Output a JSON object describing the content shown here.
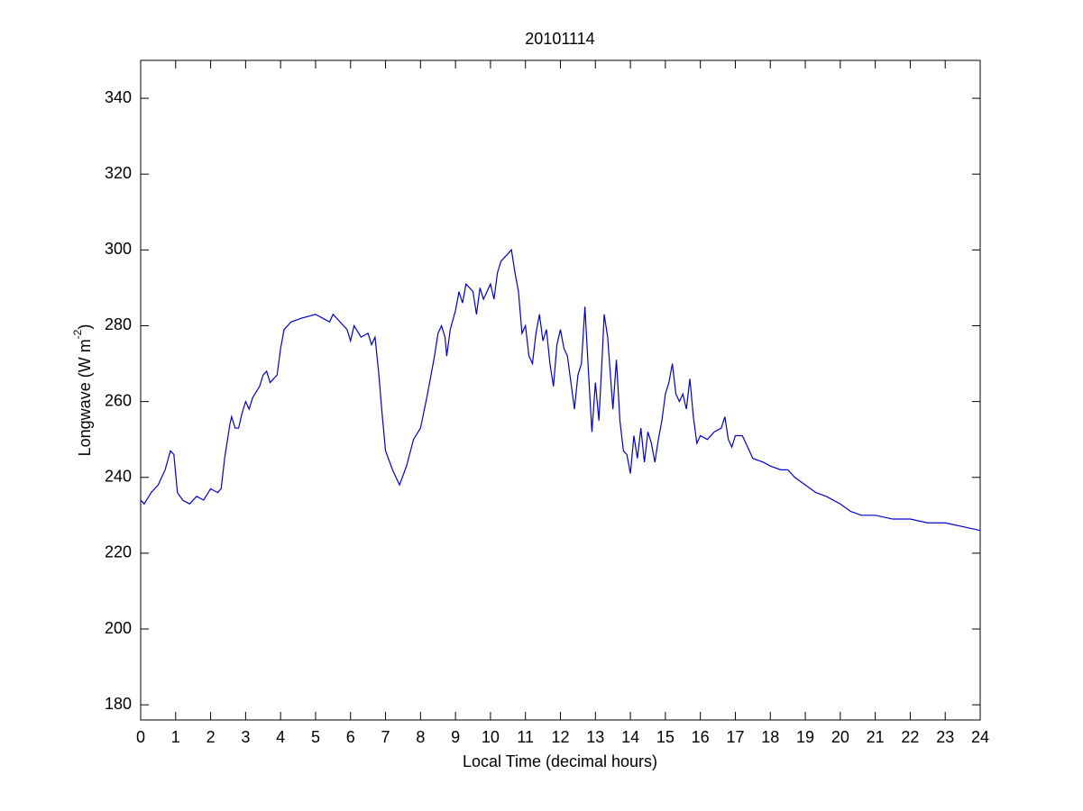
{
  "chart_data": {
    "type": "line",
    "title": "20101114",
    "xlabel": "Local Time (decimal hours)",
    "ylabel": {
      "text": "Longwave (W m",
      "superscript": "-2",
      "suffix": ")"
    },
    "color": "#0000cc",
    "xlim": [
      0,
      24
    ],
    "ylim": [
      176,
      350
    ],
    "xticks": [
      0,
      1,
      2,
      3,
      4,
      5,
      6,
      7,
      8,
      9,
      10,
      11,
      12,
      13,
      14,
      15,
      16,
      17,
      18,
      19,
      20,
      21,
      22,
      23,
      24
    ],
    "yticks": [
      180,
      200,
      220,
      240,
      260,
      280,
      300,
      320,
      340
    ],
    "grid": false,
    "x": [
      0,
      0.1,
      0.3,
      0.5,
      0.7,
      0.85,
      0.95,
      1.05,
      1.2,
      1.4,
      1.6,
      1.8,
      2.0,
      2.2,
      2.3,
      2.4,
      2.55,
      2.6,
      2.7,
      2.8,
      2.9,
      3.0,
      3.1,
      3.2,
      3.4,
      3.5,
      3.6,
      3.7,
      3.9,
      4.0,
      4.1,
      4.3,
      4.6,
      5.0,
      5.2,
      5.4,
      5.5,
      5.7,
      5.9,
      6.0,
      6.1,
      6.3,
      6.5,
      6.6,
      6.7,
      6.8,
      6.9,
      7.0,
      7.2,
      7.4,
      7.6,
      7.8,
      8.0,
      8.2,
      8.4,
      8.5,
      8.6,
      8.7,
      8.75,
      8.85,
      9.0,
      9.1,
      9.2,
      9.3,
      9.5,
      9.6,
      9.7,
      9.8,
      10.0,
      10.1,
      10.2,
      10.3,
      10.5,
      10.6,
      10.7,
      10.8,
      10.9,
      11.0,
      11.1,
      11.2,
      11.3,
      11.4,
      11.5,
      11.6,
      11.7,
      11.8,
      11.9,
      12.0,
      12.1,
      12.2,
      12.3,
      12.4,
      12.5,
      12.6,
      12.7,
      12.8,
      12.9,
      13.0,
      13.1,
      13.2,
      13.25,
      13.35,
      13.5,
      13.6,
      13.7,
      13.8,
      13.9,
      14.0,
      14.1,
      14.2,
      14.3,
      14.4,
      14.5,
      14.6,
      14.7,
      14.8,
      14.9,
      15.0,
      15.1,
      15.2,
      15.3,
      15.4,
      15.5,
      15.6,
      15.7,
      15.8,
      15.9,
      16.0,
      16.2,
      16.4,
      16.6,
      16.7,
      16.8,
      16.9,
      17.0,
      17.2,
      17.3,
      17.4,
      17.5,
      17.8,
      18.0,
      18.3,
      18.5,
      18.7,
      19.0,
      19.3,
      19.6,
      20.0,
      20.3,
      20.6,
      21.0,
      21.5,
      22.0,
      22.5,
      23.0,
      23.5,
      24.0
    ],
    "values": [
      234,
      233,
      236,
      238,
      242,
      247,
      246,
      236,
      234,
      233,
      235,
      234,
      237,
      236,
      237,
      245,
      254,
      256,
      253,
      253,
      257,
      260,
      258,
      261,
      264,
      267,
      268,
      265,
      267,
      274,
      279,
      281,
      282,
      283,
      282,
      281,
      283,
      281,
      279,
      276,
      280,
      277,
      278,
      275,
      277,
      268,
      257,
      247,
      242,
      238,
      243,
      250,
      253,
      262,
      272,
      278,
      280,
      277,
      272,
      279,
      284,
      289,
      286,
      291,
      289,
      283,
      290,
      287,
      291,
      287,
      294,
      297,
      299,
      300,
      294,
      289,
      278,
      280,
      272,
      270,
      278,
      283,
      276,
      279,
      270,
      264,
      275,
      279,
      274,
      272,
      265,
      258,
      267,
      270,
      285,
      268,
      252,
      265,
      255,
      273,
      283,
      277,
      258,
      271,
      255,
      247,
      246,
      241,
      251,
      245,
      253,
      244,
      252,
      249,
      244,
      250,
      255,
      262,
      265,
      270,
      262,
      260,
      262,
      258,
      266,
      256,
      249,
      251,
      250,
      252,
      253,
      256,
      250,
      248,
      251,
      251,
      249,
      247,
      245,
      244,
      243,
      242,
      242,
      240,
      238,
      236,
      235,
      233,
      231,
      230,
      230,
      229,
      229,
      228,
      228,
      227,
      226
    ]
  }
}
